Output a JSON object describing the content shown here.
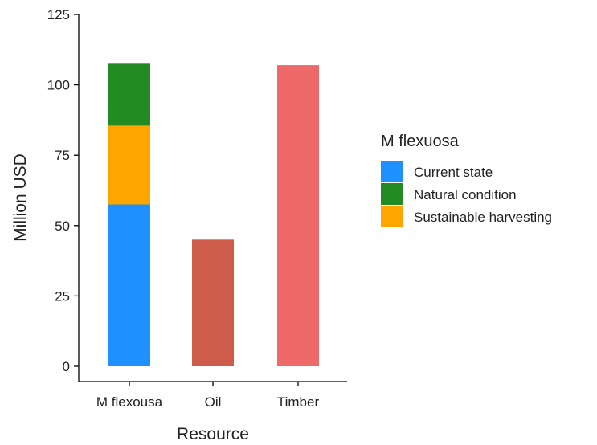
{
  "chart_data": {
    "type": "bar",
    "stacked": true,
    "categories": [
      "M flexousa",
      "Oil",
      "Timber"
    ],
    "xlabel": "Resource",
    "ylabel": "Million  USD",
    "ylim": [
      0,
      125
    ],
    "yticks": [
      0,
      25,
      50,
      75,
      100,
      125
    ],
    "grid": false,
    "legend": {
      "title": "M  flexuosa",
      "placement": "right",
      "entries": [
        {
          "label": "Current state",
          "color": "#1e90ff"
        },
        {
          "label": "Natural condition",
          "color": "#228b22"
        },
        {
          "label": "Sustainable harvesting",
          "color": "#ffa500"
        }
      ]
    },
    "bars": [
      {
        "category": "M flexousa",
        "segments": [
          {
            "series": "Current state",
            "value": 57.5,
            "color": "#1e90ff"
          },
          {
            "series": "Sustainable harvesting",
            "value": 28,
            "color": "#ffa500"
          },
          {
            "series": "Natural condition",
            "value": 22,
            "color": "#228b22"
          }
        ]
      },
      {
        "category": "Oil",
        "segments": [
          {
            "value": 45,
            "color": "#cd5c4a"
          }
        ]
      },
      {
        "category": "Timber",
        "segments": [
          {
            "value": 107,
            "color": "#ee6a6a"
          }
        ]
      }
    ]
  }
}
